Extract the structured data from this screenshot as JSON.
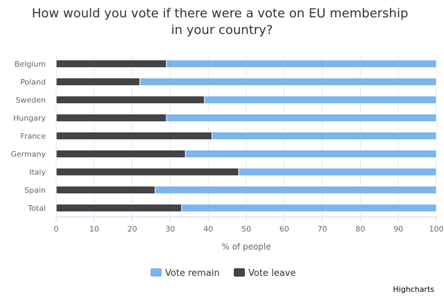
{
  "chart_data": {
    "type": "bar",
    "stacking": "percent",
    "orientation": "horizontal",
    "title": "How would you vote if there were a vote on EU membership in your country?",
    "title_lines": [
      "How would you vote if there were a vote on EU membership",
      "in your country?"
    ],
    "categories": [
      "Belgium",
      "Poland",
      "Sweden",
      "Hungary",
      "France",
      "Germany",
      "Italy",
      "Spain",
      "Total"
    ],
    "series": [
      {
        "name": "Vote leave",
        "color": "#434348",
        "values": [
          29,
          22,
          39,
          29,
          41,
          34,
          48,
          26,
          33
        ]
      },
      {
        "name": "Vote remain",
        "color": "#7cb5ec",
        "values": [
          71,
          78,
          61,
          71,
          59,
          66,
          52,
          74,
          67
        ]
      }
    ],
    "xlabel": "% of people",
    "ylabel": "",
    "xlim": [
      0,
      100
    ],
    "ticks": [
      "0",
      "10",
      "20",
      "30",
      "40",
      "50",
      "60",
      "70",
      "80",
      "90",
      "100"
    ],
    "grid": true,
    "legend": {
      "position": "bottom-center",
      "items": [
        "Vote remain",
        "Vote leave"
      ]
    },
    "credits": "Highcharts"
  }
}
